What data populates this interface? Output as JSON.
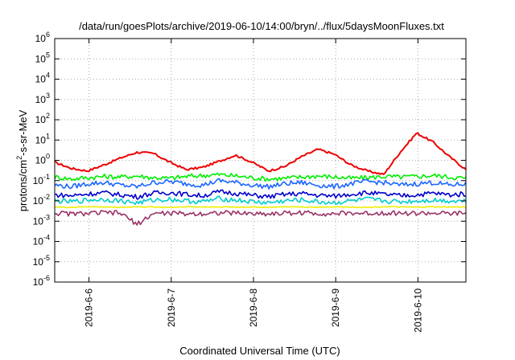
{
  "chart_data": {
    "type": "line",
    "title": "/data/run/goesPlots/archive/2019-06-10/14:00/bryn/../flux/5daysMoonFluxes.txt",
    "xlabel": "Coordinated Universal Time (UTC)",
    "ylabel": "protons/cm2-s-sr-MeV",
    "y_scale": "log",
    "ylim": [
      1e-06,
      1000000.0
    ],
    "y_ticks": [
      {
        "base": "10",
        "exp": "-6"
      },
      {
        "base": "10",
        "exp": "-5"
      },
      {
        "base": "10",
        "exp": "-4"
      },
      {
        "base": "10",
        "exp": "-3"
      },
      {
        "base": "10",
        "exp": "-2"
      },
      {
        "base": "10",
        "exp": "-1"
      },
      {
        "base": "10",
        "exp": "0"
      },
      {
        "base": "10",
        "exp": "1"
      },
      {
        "base": "10",
        "exp": "2"
      },
      {
        "base": "10",
        "exp": "3"
      },
      {
        "base": "10",
        "exp": "4"
      },
      {
        "base": "10",
        "exp": "5"
      },
      {
        "base": "10",
        "exp": "6"
      }
    ],
    "xlim": [
      "2019-06-05 14:00",
      "2019-06-10 14:00"
    ],
    "x_ticks": [
      "2019-6-6",
      "2019-6-7",
      "2019-6-8",
      "2019-6-9",
      "2019-6-10"
    ],
    "grid": true,
    "x_days": [
      0.0,
      0.2,
      0.4,
      0.6,
      0.8,
      1.0,
      1.2,
      1.4,
      1.6,
      1.8,
      2.0,
      2.2,
      2.4,
      2.6,
      2.8,
      3.0,
      3.2,
      3.4,
      3.6,
      3.8,
      4.0,
      4.2,
      4.4,
      4.6,
      4.8,
      5.0
    ],
    "series": [
      {
        "color": "#ee0000",
        "values": [
          0.8,
          0.4,
          0.3,
          0.6,
          1.3,
          2.5,
          2.2,
          0.8,
          0.35,
          0.45,
          0.9,
          1.8,
          0.8,
          0.3,
          0.5,
          1.5,
          3.5,
          2.0,
          0.6,
          0.3,
          0.2,
          2.5,
          22,
          8.0,
          1.5,
          0.35
        ]
      },
      {
        "color": "#00ee00",
        "values": [
          0.15,
          0.12,
          0.14,
          0.16,
          0.15,
          0.17,
          0.14,
          0.13,
          0.16,
          0.18,
          0.2,
          0.17,
          0.14,
          0.12,
          0.13,
          0.15,
          0.17,
          0.15,
          0.13,
          0.14,
          0.16,
          0.15,
          0.16,
          0.18,
          0.15,
          0.13
        ]
      },
      {
        "color": "#1a66ff",
        "values": [
          0.06,
          0.05,
          0.07,
          0.08,
          0.06,
          0.05,
          0.08,
          0.09,
          0.07,
          0.06,
          0.1,
          0.08,
          0.06,
          0.05,
          0.07,
          0.08,
          0.06,
          0.05,
          0.07,
          0.09,
          0.08,
          0.06,
          0.07,
          0.08,
          0.06,
          0.07
        ]
      },
      {
        "color": "#0000cc",
        "values": [
          0.02,
          0.018,
          0.022,
          0.025,
          0.02,
          0.016,
          0.024,
          0.026,
          0.021,
          0.018,
          0.028,
          0.024,
          0.019,
          0.016,
          0.021,
          0.023,
          0.019,
          0.017,
          0.022,
          0.025,
          0.021,
          0.018,
          0.02,
          0.024,
          0.02,
          0.022
        ]
      },
      {
        "color": "#00cccc",
        "values": [
          0.01,
          0.009,
          0.011,
          0.012,
          0.01,
          0.008,
          0.011,
          0.012,
          0.01,
          0.009,
          0.013,
          0.011,
          0.009,
          0.008,
          0.01,
          0.011,
          0.009,
          0.008,
          0.01,
          0.012,
          0.01,
          0.009,
          0.01,
          0.011,
          0.01,
          0.01
        ]
      },
      {
        "color": "#eeee00",
        "values": [
          0.005,
          0.0048,
          0.0052,
          0.005,
          0.0049,
          0.0051,
          0.005,
          0.0048,
          0.0052,
          0.005,
          0.0051,
          0.0049,
          0.005,
          0.0048,
          0.0051,
          0.005,
          0.0049,
          0.0051,
          0.005,
          0.0048,
          0.0052,
          0.005,
          0.0049,
          0.0051,
          0.005,
          0.005
        ]
      },
      {
        "color": "#993366",
        "values": [
          0.0025,
          0.0023,
          0.0024,
          0.0026,
          0.0025,
          0.0007,
          0.0024,
          0.0025,
          0.0023,
          0.0024,
          0.0026,
          0.0025,
          0.0024,
          0.0023,
          0.0025,
          0.0026,
          0.0024,
          0.0023,
          0.0025,
          0.0024,
          0.0026,
          0.0025,
          0.0024,
          0.0025,
          0.0023,
          0.0025
        ]
      }
    ]
  }
}
